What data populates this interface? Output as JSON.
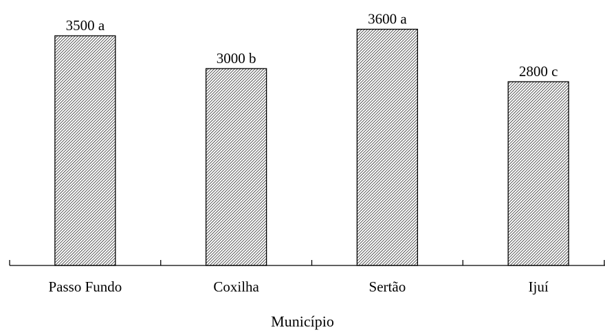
{
  "chart_data": {
    "type": "bar",
    "categories": [
      "Passo Fundo",
      "Coxilha",
      "Sertão",
      "Ijuí"
    ],
    "values": [
      3500,
      3000,
      3600,
      2800
    ],
    "data_labels": [
      "3500 a",
      "3000 b",
      "3600 a",
      "2800 c"
    ],
    "title": "",
    "xlabel": "Município",
    "ylabel": "",
    "ylim": [
      0,
      3800
    ],
    "grid": false,
    "legend": "none",
    "bar_fill": "diagonal-hatch",
    "colors": {
      "bar_fill": "#ffffff",
      "hatch": "#000000",
      "axis": "#000000"
    }
  }
}
